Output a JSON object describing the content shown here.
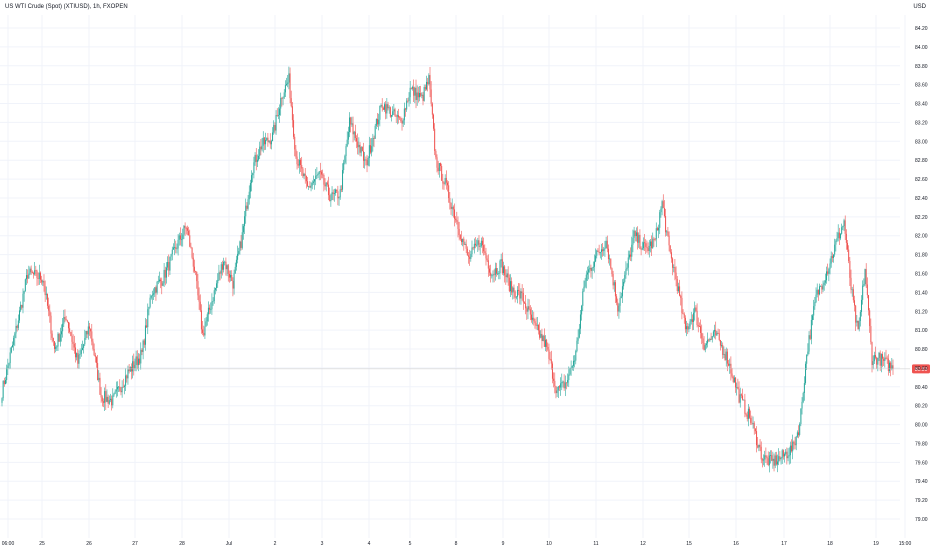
{
  "header": {
    "title": "US WTI Crude (Spot) (XTIUSD), 1h, FXOPEN",
    "currency": "USD"
  },
  "colors": {
    "up": "#26a69a",
    "down": "#ef5350",
    "grid": "#f0f3fa",
    "axis_text": "#131722",
    "price_line": "#ef5350",
    "badge_text": "#ffffff"
  },
  "chart_data": {
    "type": "candlestick",
    "title": "US WTI Crude (Spot) (XTIUSD), 1h, FXOPEN",
    "ylabel": "USD",
    "ylim": [
      79.05,
      84.45
    ],
    "y_ticks": [
      "84.20",
      "84.00",
      "83.80",
      "83.60",
      "83.40",
      "83.20",
      "83.00",
      "82.80",
      "82.60",
      "82.40",
      "82.20",
      "82.00",
      "81.80",
      "81.60",
      "81.40",
      "81.20",
      "81.00",
      "80.80",
      "80.60",
      "80.40",
      "80.20",
      "80.00",
      "79.80",
      "79.60",
      "79.40",
      "79.20",
      "79.00"
    ],
    "x_ticks": [
      "06:00",
      "25",
      "26",
      "27",
      "28",
      "Jul",
      "2",
      "3",
      "4",
      "5",
      "8",
      "9",
      "10",
      "11",
      "12",
      "15",
      "16",
      "17",
      "18",
      "19",
      "15:00"
    ],
    "last_price": "80.59",
    "grid": true,
    "legend": "none",
    "bars_per_session": 23,
    "anchors": [
      [
        0,
        80.35
      ],
      [
        12,
        81.0
      ],
      [
        22,
        81.6
      ],
      [
        35,
        81.55
      ],
      [
        45,
        80.8
      ],
      [
        55,
        81.15
      ],
      [
        65,
        80.65
      ],
      [
        75,
        81.05
      ],
      [
        85,
        80.3
      ],
      [
        95,
        80.25
      ],
      [
        108,
        80.55
      ],
      [
        120,
        80.75
      ],
      [
        128,
        81.4
      ],
      [
        138,
        81.55
      ],
      [
        150,
        81.9
      ],
      [
        158,
        82.1
      ],
      [
        165,
        81.65
      ],
      [
        172,
        80.95
      ],
      [
        182,
        81.4
      ],
      [
        190,
        81.75
      ],
      [
        198,
        81.5
      ],
      [
        206,
        82.0
      ],
      [
        214,
        82.7
      ],
      [
        222,
        82.95
      ],
      [
        232,
        83.05
      ],
      [
        240,
        83.5
      ],
      [
        246,
        83.65
      ],
      [
        252,
        82.85
      ],
      [
        262,
        82.5
      ],
      [
        272,
        82.65
      ],
      [
        282,
        82.4
      ],
      [
        290,
        82.45
      ],
      [
        298,
        83.2
      ],
      [
        306,
        82.95
      ],
      [
        312,
        82.75
      ],
      [
        318,
        83.05
      ],
      [
        326,
        83.4
      ],
      [
        334,
        83.3
      ],
      [
        342,
        83.2
      ],
      [
        350,
        83.55
      ],
      [
        360,
        83.45
      ],
      [
        366,
        83.65
      ],
      [
        372,
        82.8
      ],
      [
        380,
        82.55
      ],
      [
        390,
        82.15
      ],
      [
        400,
        81.75
      ],
      [
        410,
        81.95
      ],
      [
        420,
        81.6
      ],
      [
        428,
        81.7
      ],
      [
        436,
        81.45
      ],
      [
        446,
        81.35
      ],
      [
        456,
        81.05
      ],
      [
        466,
        80.85
      ],
      [
        476,
        80.35
      ],
      [
        484,
        80.45
      ],
      [
        492,
        80.75
      ],
      [
        500,
        81.55
      ],
      [
        508,
        81.75
      ],
      [
        518,
        81.95
      ],
      [
        528,
        81.25
      ],
      [
        534,
        81.55
      ],
      [
        542,
        82.0
      ],
      [
        552,
        81.85
      ],
      [
        560,
        81.95
      ],
      [
        566,
        82.35
      ],
      [
        572,
        81.85
      ],
      [
        578,
        81.55
      ],
      [
        586,
        81.0
      ],
      [
        594,
        81.2
      ],
      [
        602,
        80.85
      ],
      [
        612,
        80.95
      ],
      [
        622,
        80.7
      ],
      [
        632,
        80.3
      ],
      [
        642,
        80.05
      ],
      [
        652,
        79.65
      ],
      [
        660,
        79.6
      ],
      [
        668,
        79.65
      ],
      [
        678,
        79.75
      ],
      [
        684,
        80.0
      ],
      [
        690,
        80.75
      ],
      [
        698,
        81.35
      ],
      [
        708,
        81.65
      ],
      [
        716,
        81.95
      ],
      [
        722,
        82.15
      ],
      [
        728,
        81.45
      ],
      [
        734,
        80.95
      ],
      [
        740,
        81.65
      ],
      [
        746,
        80.7
      ],
      [
        752,
        80.7
      ],
      [
        758,
        80.65
      ],
      [
        764,
        80.59
      ]
    ]
  }
}
